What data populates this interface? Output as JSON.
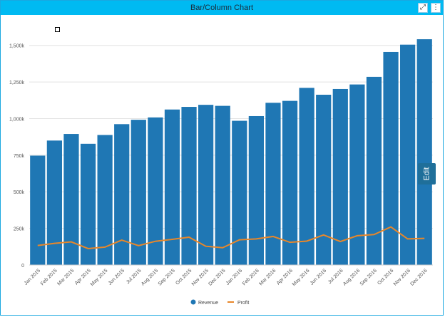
{
  "window": {
    "title": "Bar/Column Chart"
  },
  "toolbar": {
    "expand_icon": "expand-arrows-icon",
    "menu_icon": "vertical-dots-icon"
  },
  "edit_tab": {
    "label": "Edit"
  },
  "colors": {
    "revenue": "#1f77b4",
    "profit": "#e8872a",
    "titlebar": "#00baf2"
  },
  "chart_data": {
    "type": "bar",
    "categories": [
      "Jan 2015",
      "Feb 2015",
      "Mar 2015",
      "Apr 2015",
      "May 2015",
      "Jun 2015",
      "Jul 2015",
      "Aug 2015",
      "Sep 2015",
      "Oct 2015",
      "Nov 2015",
      "Dec 2015",
      "Jan 2016",
      "Feb 2016",
      "Mar 2016",
      "Apr 2016",
      "May 2016",
      "Jun 2016",
      "Jul 2016",
      "Aug 2016",
      "Sep 2016",
      "Oct 2016",
      "Nov 2016",
      "Dec 2016"
    ],
    "series": [
      {
        "name": "Revenue",
        "kind": "bar",
        "values": [
          747000,
          850000,
          895000,
          828000,
          888000,
          962000,
          992000,
          1008000,
          1062000,
          1080000,
          1094000,
          1087000,
          985000,
          1017000,
          1108000,
          1121000,
          1210000,
          1163000,
          1202000,
          1233000,
          1285000,
          1455000,
          1505000,
          1542000
        ]
      },
      {
        "name": "Profit",
        "kind": "line",
        "values": [
          133000,
          148000,
          158000,
          112000,
          122000,
          170000,
          132000,
          162000,
          175000,
          190000,
          128000,
          118000,
          172000,
          178000,
          195000,
          155000,
          163000,
          205000,
          160000,
          200000,
          208000,
          260000,
          178000,
          182000
        ]
      }
    ],
    "yticks": [
      "0",
      "250k",
      "500k",
      "750k",
      "1,000k",
      "1,250k",
      "1,500k"
    ],
    "ylim": [
      0,
      1500000
    ],
    "grid": true,
    "legend_position": "bottom"
  }
}
